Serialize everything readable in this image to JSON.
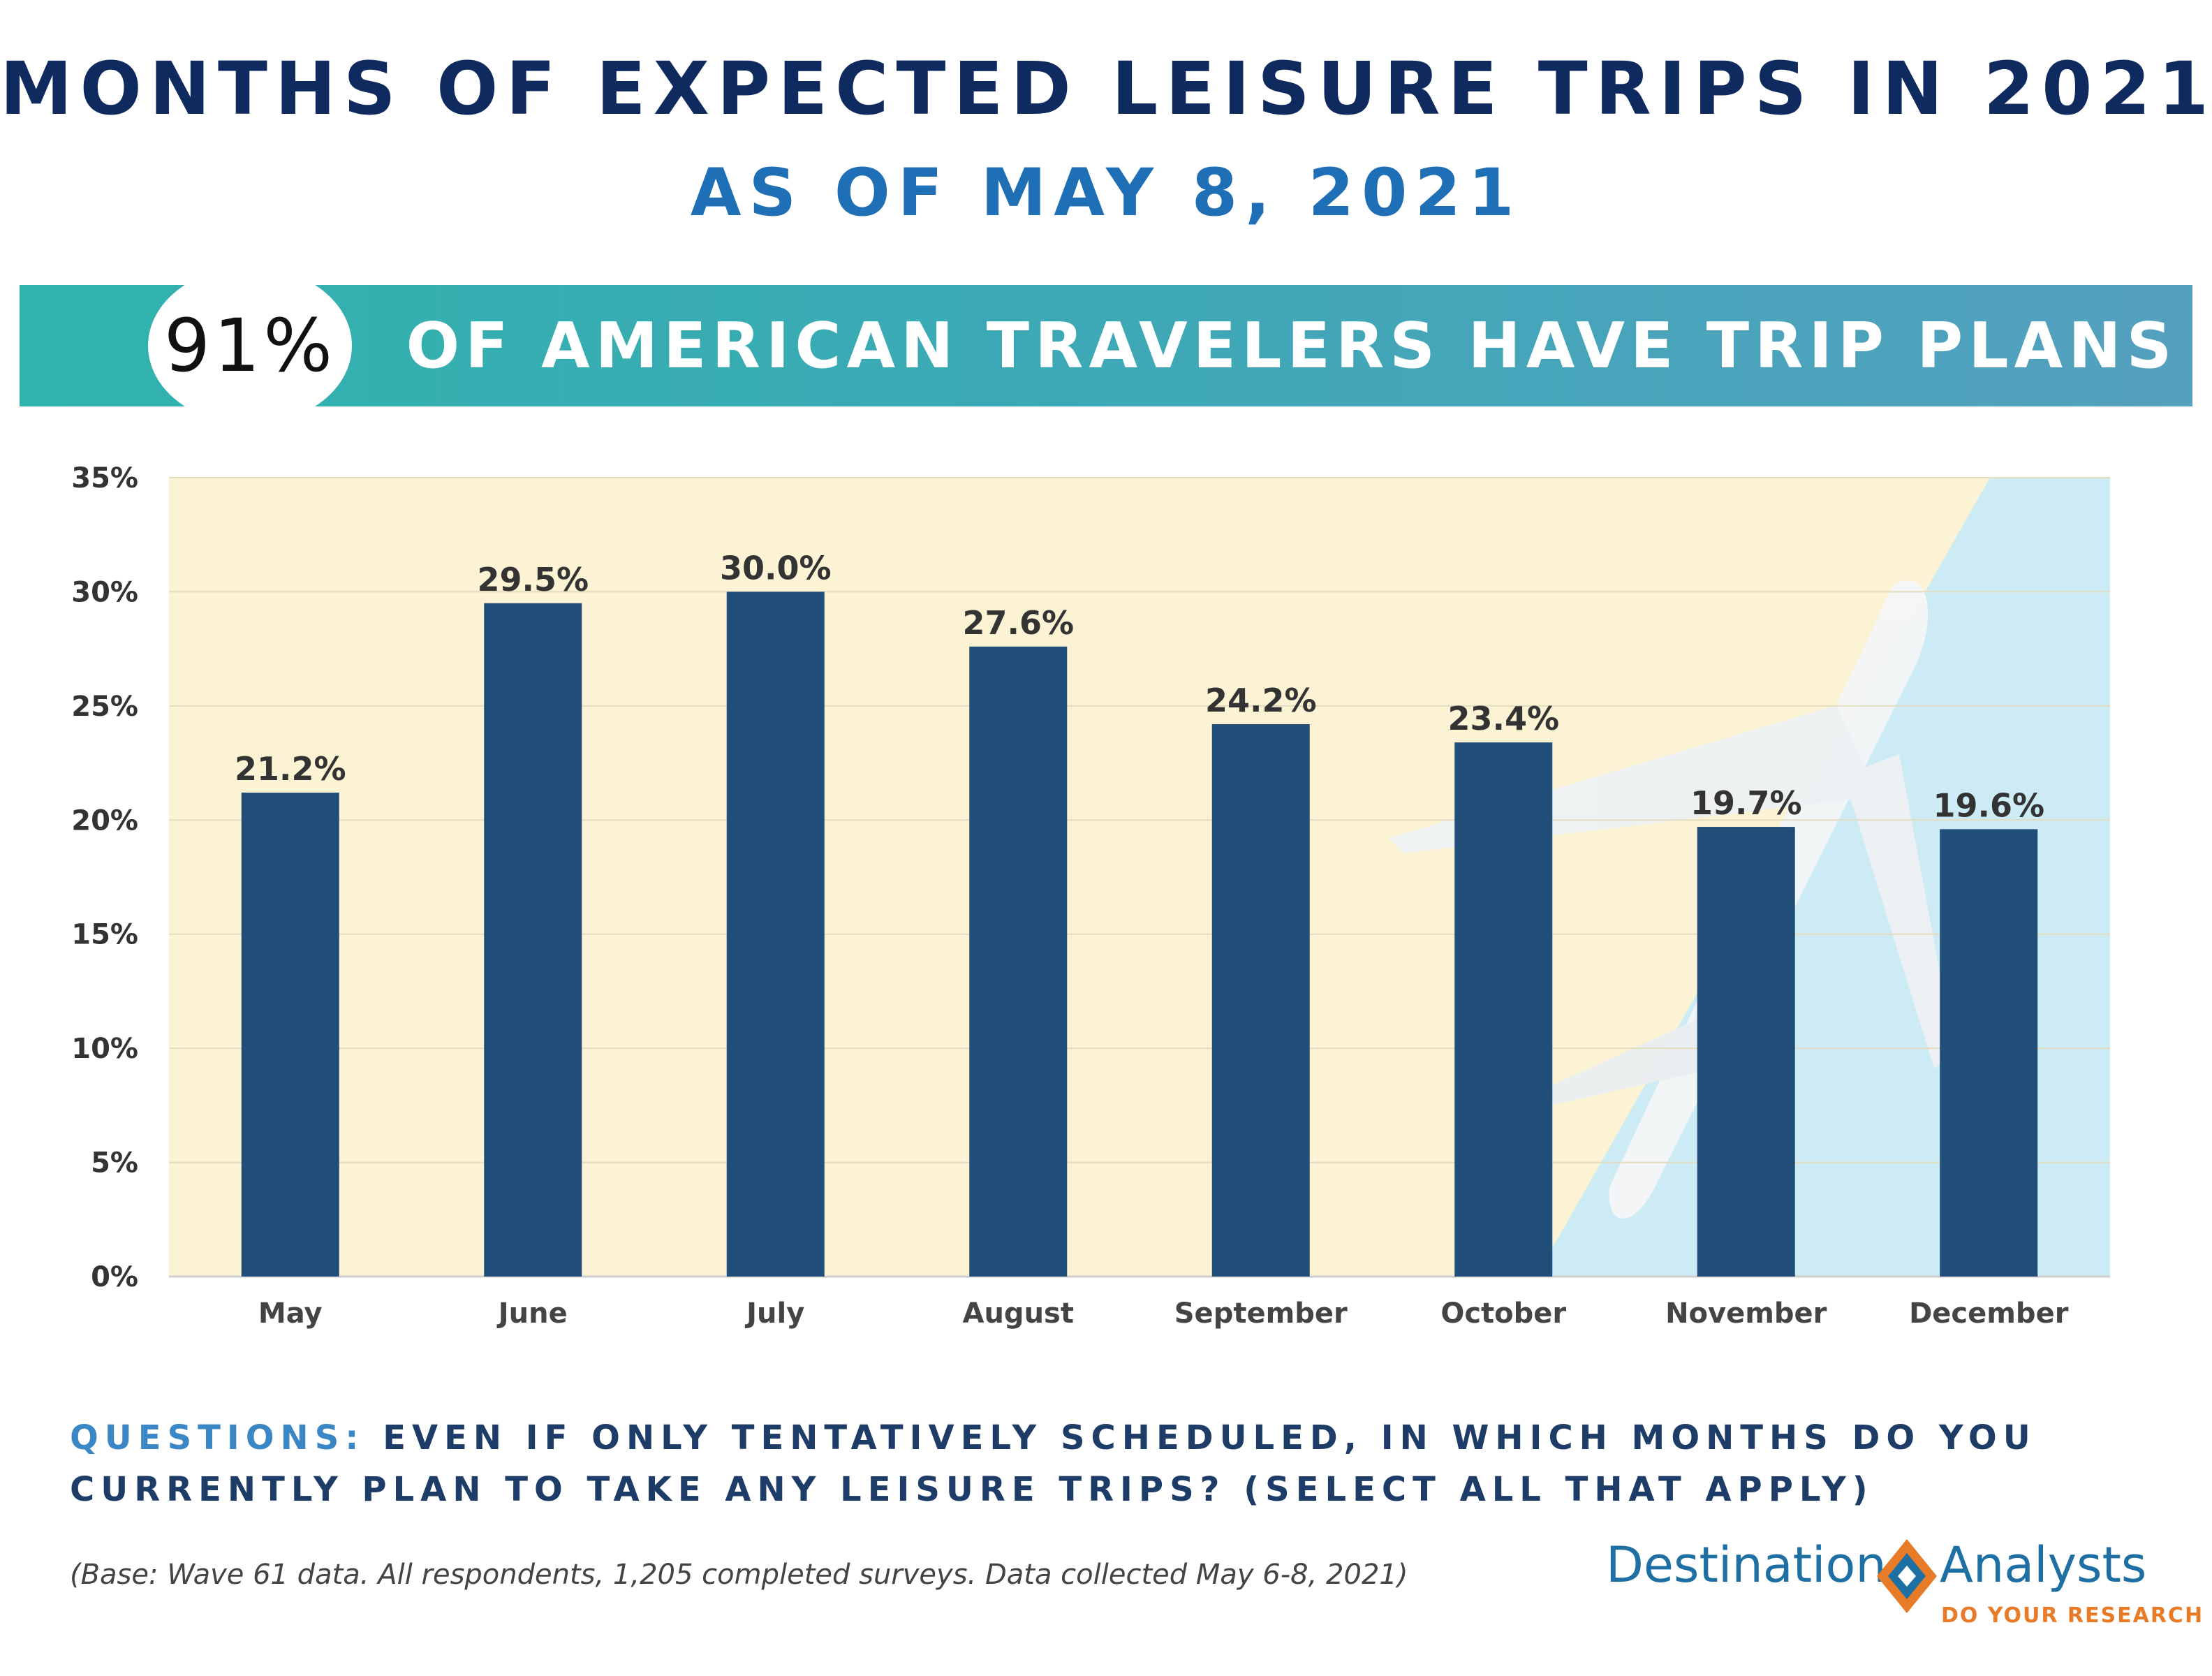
{
  "header": {
    "title": "MONTHS OF EXPECTED LEISURE TRIPS IN 2021",
    "subtitle": "AS OF MAY 8, 2021"
  },
  "banner": {
    "stat": "91%",
    "text": "OF AMERICAN TRAVELERS HAVE TRIP PLANS",
    "gradient_start": "#30b3ad",
    "gradient_end": "#54a0bf"
  },
  "chart_data": {
    "type": "bar",
    "categories": [
      "May",
      "June",
      "July",
      "August",
      "September",
      "October",
      "November",
      "December"
    ],
    "values": [
      21.2,
      29.5,
      30.0,
      27.6,
      24.2,
      23.4,
      19.7,
      19.6
    ],
    "data_labels": [
      "21.2%",
      "29.5%",
      "30.0%",
      "27.6%",
      "24.2%",
      "23.4%",
      "19.7%",
      "19.6%"
    ],
    "y_ticks": [
      0,
      5,
      10,
      15,
      20,
      25,
      30,
      35
    ],
    "y_tick_labels": [
      "0%",
      "5%",
      "10%",
      "15%",
      "20%",
      "25%",
      "30%",
      "35%"
    ],
    "ylim": [
      0,
      35
    ],
    "grid": true,
    "legend": "none",
    "bar_color": "#214e78",
    "background_colors": [
      "#fbf3d4",
      "#cdebf5"
    ],
    "background_image": "airplane"
  },
  "footer": {
    "question_label": "QUESTIONS:",
    "question_text": " EVEN IF ONLY TENTATIVELY SCHEDULED, IN WHICH MONTHS DO YOU CURRENTLY PLAN TO TAKE ANY LEISURE TRIPS? (SELECT ALL THAT APPLY)",
    "base_note": "(Base: Wave 61 data. All respondents, 1,205 completed surveys. Data collected May 6-8, 2021)"
  },
  "logo": {
    "name_left": "Destination",
    "name_right": "Analysts",
    "tagline": "DO YOUR RESEARCH",
    "color_blue": "#1e6fa3",
    "color_orange": "#e87b27"
  }
}
